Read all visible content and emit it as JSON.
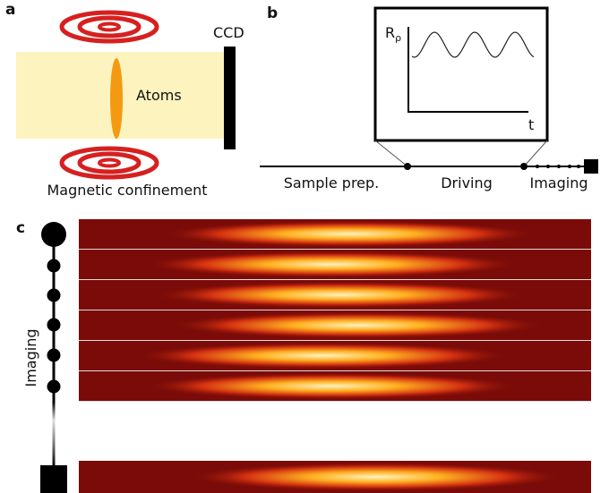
{
  "panel_a": {
    "label": "a",
    "detector": "CCD",
    "sample": "Atoms",
    "caption": "Magnetic confinement"
  },
  "panel_b": {
    "label": "b",
    "y_axis": {
      "base": "R",
      "sub": "ρ"
    },
    "x_axis": "t",
    "stages": [
      "Sample prep.",
      "Driving",
      "Imaging"
    ]
  },
  "panel_c": {
    "label": "c",
    "axis_label": "Imaging"
  }
}
